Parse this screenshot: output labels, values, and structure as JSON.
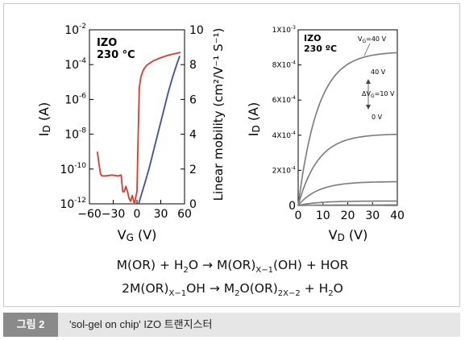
{
  "chart_data": [
    {
      "type": "line",
      "sample": "IZO",
      "temperature": "230 °C",
      "xlabel_main": "V",
      "xlabel_sub": "G",
      "xlabel_unit": " (V)",
      "ylabel_main": "I",
      "ylabel_sub": "D",
      "ylabel_unit": " (A)",
      "y2label": "Linear mobility (cm²/V⁻¹ S⁻¹)",
      "xlim": [
        -60,
        60
      ],
      "ylim_log": [
        1e-12,
        0.01
      ],
      "y2lim": [
        0,
        10
      ],
      "x_ticks": [
        "−60",
        "−30",
        "0",
        "30",
        "60"
      ],
      "y_ticks": [
        {
          "base": "10",
          "exp": "-12"
        },
        {
          "base": "10",
          "exp": "-10"
        },
        {
          "base": "10",
          "exp": "-8"
        },
        {
          "base": "10",
          "exp": "-6"
        },
        {
          "base": "10",
          "exp": "-4"
        },
        {
          "base": "10",
          "exp": "-2"
        }
      ],
      "y2_ticks": [
        "0",
        "2",
        "4",
        "6",
        "8",
        "10"
      ],
      "series": [
        {
          "color": "#dc3a2a",
          "points": [
            [
              -50,
              1e-09
            ],
            [
              -48,
              2e-10
            ],
            [
              -46,
              5e-11
            ],
            [
              -44,
              4e-11
            ],
            [
              -40,
              4e-11
            ],
            [
              -32,
              4.5e-11
            ],
            [
              -24,
              4e-11
            ],
            [
              -20,
              4.5e-11
            ],
            [
              -18,
              5e-12
            ],
            [
              -16,
              5e-12
            ],
            [
              -14,
              1e-11
            ],
            [
              -12,
              5e-12
            ],
            [
              -10,
              2e-12
            ],
            [
              -8,
              1.4e-12
            ],
            [
              -6,
              3e-12
            ],
            [
              -4,
              1.3e-12
            ],
            [
              -3,
              1e-12
            ],
            [
              -2,
              2e-12
            ],
            [
              0,
              5e-12
            ],
            [
              1,
              1e-09
            ],
            [
              2,
              1e-07
            ],
            [
              3,
              5e-06
            ],
            [
              5,
              2e-05
            ],
            [
              8,
              5e-05
            ],
            [
              12,
              9e-05
            ],
            [
              20,
              0.00016
            ],
            [
              30,
              0.00025
            ],
            [
              40,
              0.00035
            ],
            [
              50,
              0.00045
            ],
            [
              55,
              0.0005
            ]
          ]
        },
        {
          "color": "#3d4fa0",
          "points": [
            [
              2,
              0
            ],
            [
              6,
              0.6
            ],
            [
              10,
              1.2
            ],
            [
              15,
              2
            ],
            [
              20,
              2.9
            ],
            [
              25,
              3.8
            ],
            [
              30,
              4.7
            ],
            [
              35,
              5.6
            ],
            [
              40,
              6.5
            ],
            [
              45,
              7.3
            ],
            [
              50,
              8.0
            ],
            [
              54,
              8.5
            ]
          ]
        }
      ]
    },
    {
      "type": "line",
      "sample": "IZO",
      "temperature": "230 ºC",
      "xlabel_main": "V",
      "xlabel_sub": "D",
      "xlabel_unit": " (V)",
      "ylabel_main": "I",
      "ylabel_sub": "D",
      "ylabel_unit": " (A)",
      "xlim": [
        0,
        40
      ],
      "ylim": [
        0,
        0.001
      ],
      "x_ticks": [
        "0",
        "10",
        "20",
        "30",
        "40"
      ],
      "y_ticks": [
        {
          "v": 0,
          "base": "0",
          "exp": ""
        },
        {
          "v": 0.0002,
          "base": "2X10",
          "exp": "-4"
        },
        {
          "v": 0.0004,
          "base": "4X10",
          "exp": "-4"
        },
        {
          "v": 0.0006,
          "base": "6X10",
          "exp": "-4"
        },
        {
          "v": 0.0008,
          "base": "8X10",
          "exp": "-4"
        },
        {
          "v": 0.001,
          "base": "1X10",
          "exp": "-3"
        }
      ],
      "annotations": {
        "vg_top_main": "V",
        "vg_top_sub": "G",
        "vg_top_value": "=40 V",
        "label_40": "40 V",
        "delta_main": "ΔV",
        "delta_sub": "G",
        "delta_value": "=10 V",
        "label_0": "0 V"
      },
      "series": [
        {
          "color": "#7a7a7a",
          "vsat": 0.00087
        },
        {
          "color": "#7a7a7a",
          "vsat": 0.000405
        },
        {
          "color": "#7a7a7a",
          "vsat": 0.000135
        },
        {
          "color": "#7a7a7a",
          "vsat": 2.5e-05
        },
        {
          "color": "#7a7a7a",
          "vsat": 3e-06
        }
      ]
    }
  ],
  "equations": {
    "eq1": {
      "a": "M(OR) + H",
      "a_sub": "2",
      "b": "O → M(OR)",
      "b_sub": "X−1",
      "c": "(OH) + HOR"
    },
    "eq2": {
      "a": "2M(OR)",
      "a_sub": "X−1",
      "b": "OH → M",
      "b_sub": "2",
      "c": "O(OR)",
      "c_sub": "2X−2",
      "d": " + H",
      "d_sub": "2",
      "e": "O"
    }
  },
  "caption": {
    "tag": "그림 2",
    "text": "'sol-gel on chip' IZO 트랜지스터"
  }
}
